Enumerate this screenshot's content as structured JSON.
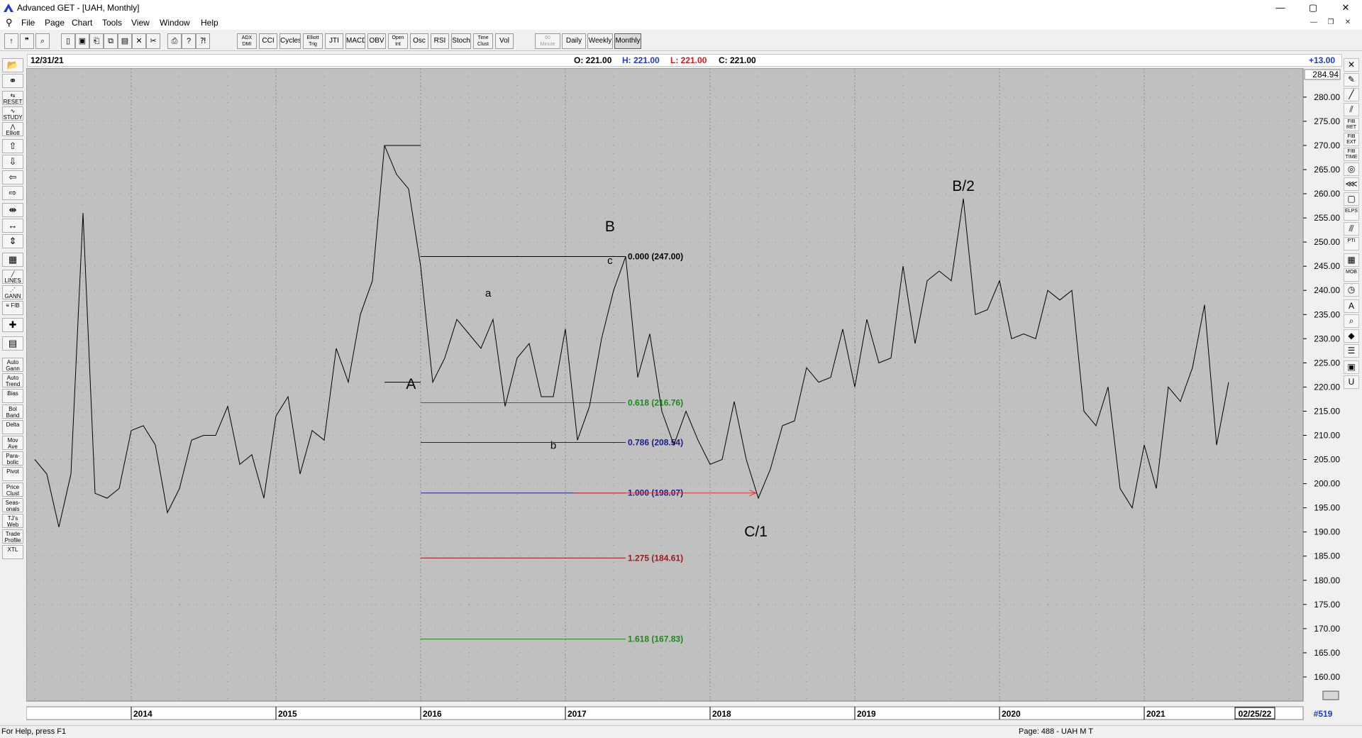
{
  "window": {
    "title": "Advanced GET - [UAH, Monthly]",
    "min_glyph": "—",
    "max_glyph": "▢",
    "close_glyph": "✕"
  },
  "menu": [
    "File",
    "Page",
    "Chart",
    "Tools",
    "View",
    "Window",
    "Help"
  ],
  "toolbar": {
    "icon_buttons": [
      "pointer-icon",
      "quote-icon",
      "zoom-icon",
      "new-page-icon",
      "save-icon",
      "open-icon",
      "copy-icon",
      "paste-icon",
      "delete-icon",
      "cut-icon",
      "print-icon",
      "help-icon",
      "context-help-icon"
    ],
    "studies": [
      {
        "id": "adx",
        "label1": "ADX",
        "label2": "DMI"
      },
      {
        "id": "cci",
        "label1": "CCI",
        "label2": ""
      },
      {
        "id": "cycles",
        "label1": "Cycles",
        "label2": ""
      },
      {
        "id": "elliott-trig",
        "label1": "Elliott",
        "label2": "Trig"
      },
      {
        "id": "jti",
        "label1": "JTI",
        "label2": ""
      },
      {
        "id": "macd",
        "label1": "MACD",
        "label2": ""
      },
      {
        "id": "obv",
        "label1": "OBV",
        "label2": ""
      },
      {
        "id": "open-int",
        "label1": "Open",
        "label2": "Int"
      },
      {
        "id": "osc",
        "label1": "Osc",
        "label2": ""
      },
      {
        "id": "rsi",
        "label1": "RSI",
        "label2": ""
      },
      {
        "id": "stoch",
        "label1": "Stoch",
        "label2": ""
      },
      {
        "id": "time-clust",
        "label1": "Time",
        "label2": "Clust"
      },
      {
        "id": "vol",
        "label1": "Vol",
        "label2": ""
      }
    ],
    "periods": [
      {
        "id": "60-minute",
        "label1": "60",
        "label2": "Minute",
        "disabled": true
      },
      {
        "id": "daily",
        "label1": "Daily",
        "label2": ""
      },
      {
        "id": "weekly",
        "label1": "Weekly",
        "label2": ""
      },
      {
        "id": "monthly",
        "label1": "Monthly",
        "label2": "",
        "pressed": true
      }
    ]
  },
  "left_tools": [
    {
      "id": "open",
      "label": "📂"
    },
    {
      "id": "binoculars",
      "label": "⚭"
    },
    {
      "id": "reset",
      "label": "⇆ RESET"
    },
    {
      "id": "study",
      "label": "∿ STUDY"
    },
    {
      "id": "elliott",
      "label": "⋀ Elliott"
    },
    {
      "id": "arrow-up",
      "label": "⇧"
    },
    {
      "id": "arrow-down",
      "label": "⇩"
    },
    {
      "id": "arrow-left",
      "label": "⇦"
    },
    {
      "id": "arrow-right",
      "label": "⇨"
    },
    {
      "id": "compress",
      "label": "⇼"
    },
    {
      "id": "expand-h",
      "label": "↔"
    },
    {
      "id": "expand-v",
      "label": "⇕"
    },
    {
      "id": "grid",
      "label": "▦"
    },
    {
      "id": "lines",
      "label": "╱ LINES"
    },
    {
      "id": "gann",
      "label": "⋰ GANN"
    },
    {
      "id": "fib",
      "label": "≡ FIB"
    },
    {
      "id": "crosshair",
      "label": "✚"
    },
    {
      "id": "print",
      "label": "▤"
    },
    {
      "id": "auto-gann",
      "label": "Auto Gann"
    },
    {
      "id": "auto-trend",
      "label": "Auto Trend"
    },
    {
      "id": "bias",
      "label": "Bias"
    },
    {
      "id": "bol-band",
      "label": "Bol Band"
    },
    {
      "id": "delta",
      "label": "Delta"
    },
    {
      "id": "mov-ave",
      "label": "Mov Ave"
    },
    {
      "id": "parabolic",
      "label": "Para- bolic"
    },
    {
      "id": "pivot",
      "label": "Pivot"
    },
    {
      "id": "price-clust",
      "label": "Price Clust"
    },
    {
      "id": "seasonals",
      "label": "Seas- onals"
    },
    {
      "id": "tjs-web",
      "label": "TJ's Web"
    },
    {
      "id": "trade-profile",
      "label": "Trade Profile"
    },
    {
      "id": "xtl",
      "label": "XTL"
    }
  ],
  "right_tools": [
    {
      "id": "cross",
      "label": "✕"
    },
    {
      "id": "pencil",
      "label": "✎"
    },
    {
      "id": "trendline",
      "label": "╱"
    },
    {
      "id": "channel",
      "label": "⫽"
    },
    {
      "id": "fib-ret",
      "label": "FIB RET"
    },
    {
      "id": "fib-ext",
      "label": "FIB EXT"
    },
    {
      "id": "fib-time",
      "label": "FIB TIME"
    },
    {
      "id": "circle",
      "label": "◎"
    },
    {
      "id": "fan",
      "label": "⋘"
    },
    {
      "id": "box",
      "label": "▢"
    },
    {
      "id": "ellipse",
      "label": "ELPS"
    },
    {
      "id": "parallel",
      "label": "⫻"
    },
    {
      "id": "pti",
      "label": "PTI"
    },
    {
      "id": "grid-tool",
      "label": "▦"
    },
    {
      "id": "mob",
      "label": "MOB"
    },
    {
      "id": "clock",
      "label": "◷"
    },
    {
      "id": "text",
      "label": "A"
    },
    {
      "id": "magnify",
      "label": "⌕"
    },
    {
      "id": "eraser",
      "label": "◆"
    },
    {
      "id": "list",
      "label": "☰"
    },
    {
      "id": "page",
      "label": "▣"
    },
    {
      "id": "magnet",
      "label": "U"
    }
  ],
  "ohlc": {
    "date": "12/31/21",
    "open": "O: 221.00",
    "high": "H: 221.00",
    "low": "L: 221.00",
    "close": "C: 221.00",
    "change": "+13.00"
  },
  "chart_data": {
    "type": "line",
    "symbol": "UAH",
    "period": "Monthly",
    "ylim": [
      155,
      286
    ],
    "yticks": [
      160,
      165,
      170,
      175,
      180,
      185,
      190,
      195,
      200,
      205,
      210,
      215,
      220,
      225,
      230,
      235,
      240,
      245,
      250,
      255,
      260,
      265,
      270,
      275,
      280
    ],
    "price_box": "284.94",
    "x_start": "2013-05",
    "year_labels": [
      {
        "label": "2014",
        "month": 8
      },
      {
        "label": "2015",
        "month": 20
      },
      {
        "label": "2016",
        "month": 32
      },
      {
        "label": "2017",
        "month": 44
      },
      {
        "label": "2018",
        "month": 56
      },
      {
        "label": "2019",
        "month": 68
      },
      {
        "label": "2020",
        "month": 80
      },
      {
        "label": "2021",
        "month": 92
      }
    ],
    "end_date": "02/25/22",
    "bar_count": "#519",
    "values": [
      205,
      202,
      191,
      202,
      256,
      198,
      197,
      199,
      211,
      212,
      208,
      194,
      199,
      209,
      210,
      210,
      216,
      204,
      206,
      197,
      214,
      218,
      202,
      211,
      209,
      228,
      221,
      235,
      242,
      270,
      264,
      261,
      245,
      221,
      226,
      234,
      231,
      228,
      234,
      216,
      226,
      229,
      218,
      218,
      232,
      209,
      216,
      230,
      240,
      247,
      222,
      231,
      215,
      208,
      215,
      209,
      204,
      205,
      217,
      205,
      197,
      203,
      212,
      213,
      224,
      221,
      222,
      232,
      220,
      234,
      225,
      226,
      245,
      229,
      242,
      244,
      242,
      259,
      235,
      236,
      242,
      230,
      231,
      230,
      240,
      238,
      240,
      215,
      212,
      220,
      199,
      195,
      208,
      199,
      220,
      217,
      224,
      237,
      208,
      221
    ],
    "wave_labels": [
      {
        "text": "A",
        "month": 31.2,
        "value": 219.6,
        "size": "large"
      },
      {
        "text": "a",
        "month": 37.6,
        "value": 238.7,
        "size": "small"
      },
      {
        "text": "B",
        "month": 47.7,
        "value": 252.2,
        "size": "large"
      },
      {
        "text": "c",
        "month": 47.7,
        "value": 245.5,
        "size": "small"
      },
      {
        "text": "b",
        "month": 43.0,
        "value": 207.2,
        "size": "small"
      },
      {
        "text": "C/1",
        "month": 59.8,
        "value": 189.1,
        "size": "large"
      },
      {
        "text": "B/2",
        "month": 77.0,
        "value": 260.6,
        "size": "large"
      }
    ],
    "fib_levels": [
      {
        "ratio": "0.000",
        "value": 247.0,
        "label": "0.000 (247.00)",
        "color": "#000000"
      },
      {
        "ratio": "0.618",
        "value": 216.76,
        "label": "0.618 (216.76)",
        "color": "#1a8a1a"
      },
      {
        "ratio": "0.786",
        "value": 208.54,
        "label": "0.786 (208.54)",
        "color": "#1c1c8c"
      },
      {
        "ratio": "1.000",
        "value": 198.07,
        "label": "1.000 (198.07)",
        "color": "#1c1c8c"
      },
      {
        "ratio": "1.275",
        "value": 184.61,
        "label": "1.275 (184.61)",
        "color": "#9a1a1a"
      },
      {
        "ratio": "1.618",
        "value": 167.83,
        "label": "1.618 (167.83)",
        "color": "#1a8a1a"
      }
    ],
    "fib_start_month": 32,
    "fib_end_month": 49,
    "projection_arrow": {
      "from_month": 44.7,
      "to_month": 59.8,
      "value": 198.07,
      "color": "#e03030"
    },
    "pivot_marks": [
      {
        "from_month": 29,
        "to_month": 32,
        "value": 270
      },
      {
        "from_month": 29,
        "to_month": 32,
        "value": 221
      }
    ],
    "grid": true
  },
  "status": {
    "help": "For Help, press F1",
    "page": "Page: 488 - UAH M T"
  }
}
